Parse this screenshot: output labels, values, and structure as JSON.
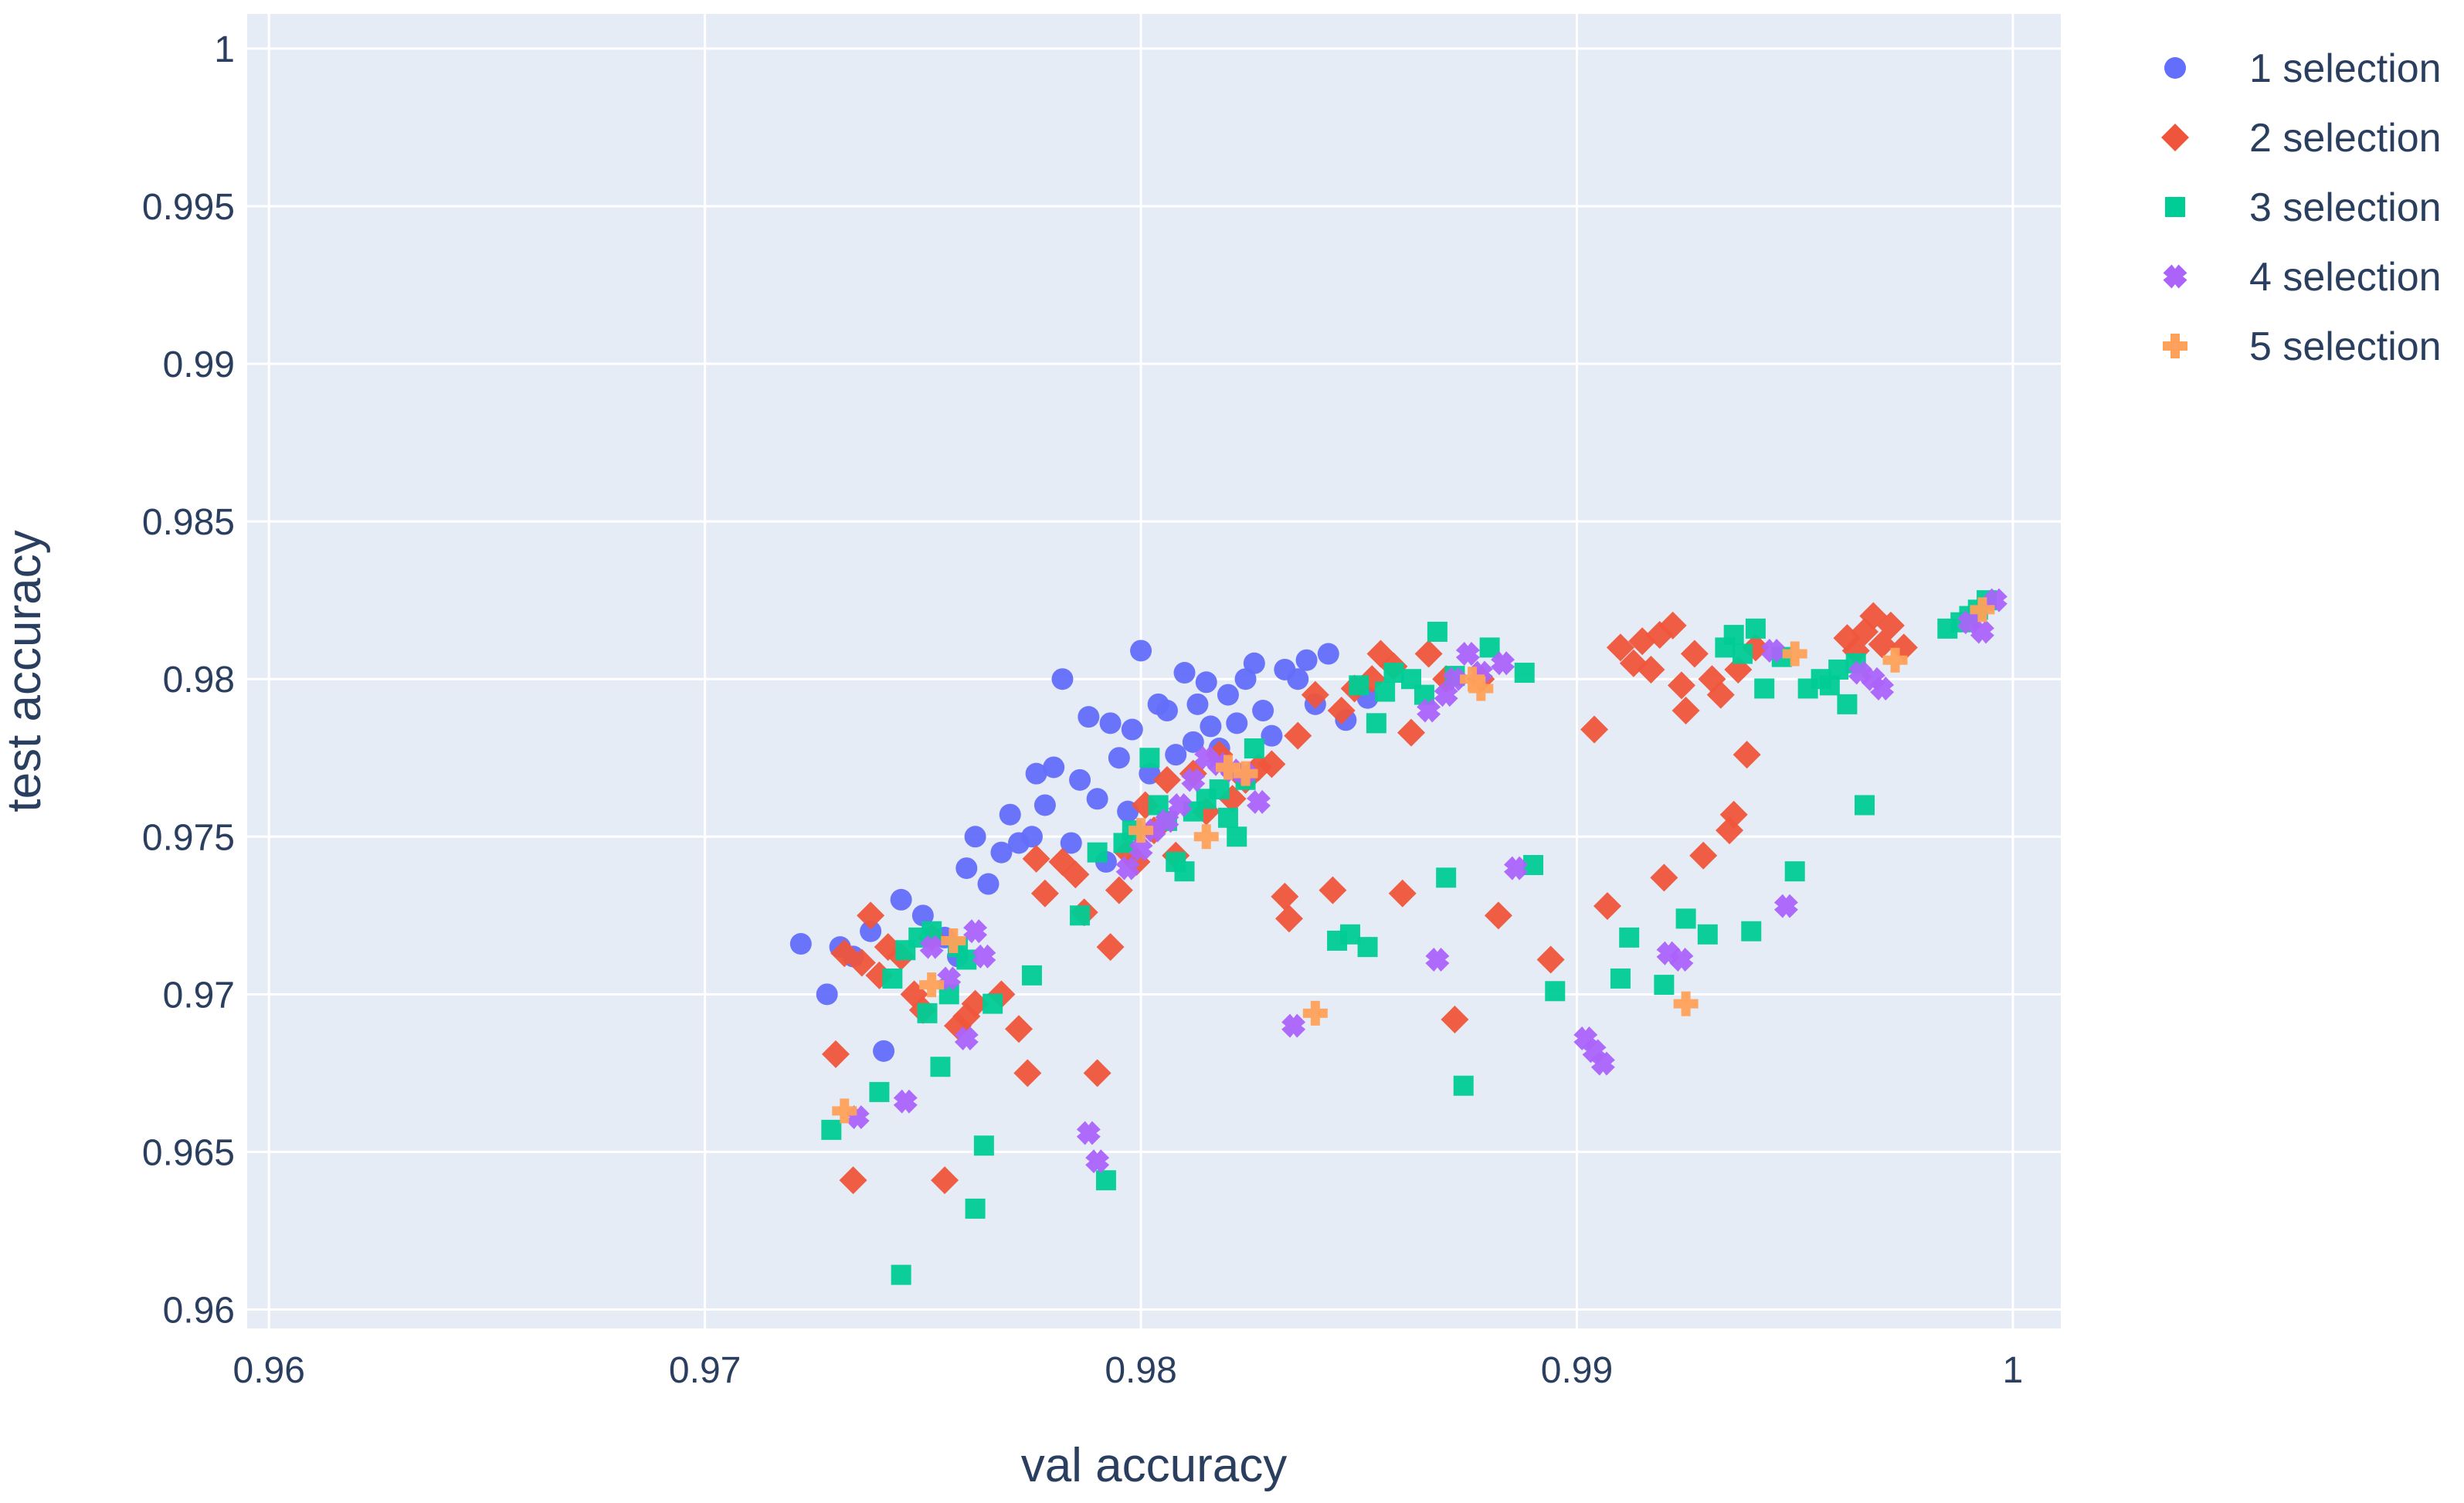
{
  "chart_data": {
    "type": "scatter",
    "title": "",
    "xlabel": "val accuracy",
    "ylabel": "test accuracy",
    "xlim": [
      0.9595,
      1.0011
    ],
    "ylim": [
      0.9594,
      1.0011
    ],
    "x_ticks": [
      0.96,
      0.97,
      0.98,
      0.99,
      1.0
    ],
    "x_tick_labels": [
      "0.96",
      "0.97",
      "0.98",
      "0.99",
      "1"
    ],
    "y_ticks": [
      0.96,
      0.965,
      0.97,
      0.975,
      0.98,
      0.985,
      0.99,
      0.995,
      1.0
    ],
    "y_tick_labels": [
      "0.96",
      "0.965",
      "0.97",
      "0.975",
      "0.98",
      "0.985",
      "0.99",
      "0.995",
      "1"
    ],
    "grid": true,
    "legend_position": "top-right",
    "colors": {
      "plot_background": "#e5ecf6",
      "grid": "#ffffff",
      "text": "#2a3f5f"
    },
    "series": [
      {
        "name": "1 selection",
        "marker": "circle",
        "color": "#636efa",
        "points": [
          [
            0.9722,
            0.9716
          ],
          [
            0.9728,
            0.97
          ],
          [
            0.9731,
            0.9715
          ],
          [
            0.9734,
            0.9712
          ],
          [
            0.9738,
            0.972
          ],
          [
            0.9741,
            0.9682
          ],
          [
            0.9745,
            0.973
          ],
          [
            0.975,
            0.9725
          ],
          [
            0.9755,
            0.9718
          ],
          [
            0.9758,
            0.9712
          ],
          [
            0.976,
            0.974
          ],
          [
            0.9762,
            0.975
          ],
          [
            0.9765,
            0.9735
          ],
          [
            0.9768,
            0.9745
          ],
          [
            0.977,
            0.9757
          ],
          [
            0.9772,
            0.9748
          ],
          [
            0.9775,
            0.975
          ],
          [
            0.9776,
            0.977
          ],
          [
            0.9778,
            0.976
          ],
          [
            0.978,
            0.9772
          ],
          [
            0.9782,
            0.98
          ],
          [
            0.9784,
            0.9748
          ],
          [
            0.9786,
            0.9768
          ],
          [
            0.9788,
            0.9788
          ],
          [
            0.979,
            0.9762
          ],
          [
            0.9792,
            0.9742
          ],
          [
            0.9793,
            0.9786
          ],
          [
            0.9795,
            0.9775
          ],
          [
            0.9797,
            0.9758
          ],
          [
            0.9798,
            0.9784
          ],
          [
            0.98,
            0.9809
          ],
          [
            0.9802,
            0.977
          ],
          [
            0.9804,
            0.9792
          ],
          [
            0.9806,
            0.979
          ],
          [
            0.9808,
            0.9776
          ],
          [
            0.981,
            0.9802
          ],
          [
            0.9812,
            0.978
          ],
          [
            0.9813,
            0.9792
          ],
          [
            0.9815,
            0.9799
          ],
          [
            0.9816,
            0.9785
          ],
          [
            0.9818,
            0.9778
          ],
          [
            0.982,
            0.9795
          ],
          [
            0.9822,
            0.9786
          ],
          [
            0.9824,
            0.98
          ],
          [
            0.9826,
            0.9805
          ],
          [
            0.9828,
            0.979
          ],
          [
            0.983,
            0.9782
          ],
          [
            0.9833,
            0.9803
          ],
          [
            0.9836,
            0.98
          ],
          [
            0.9838,
            0.9806
          ],
          [
            0.984,
            0.9792
          ],
          [
            0.9843,
            0.9808
          ],
          [
            0.9847,
            0.9787
          ],
          [
            0.9852,
            0.9794
          ]
        ]
      },
      {
        "name": "2 selection",
        "marker": "diamond",
        "color": "#ef553b",
        "points": [
          [
            0.973,
            0.9681
          ],
          [
            0.9732,
            0.9713
          ],
          [
            0.9734,
            0.9641
          ],
          [
            0.9736,
            0.971
          ],
          [
            0.9738,
            0.9725
          ],
          [
            0.974,
            0.9706
          ],
          [
            0.9742,
            0.9715
          ],
          [
            0.9745,
            0.9712
          ],
          [
            0.9748,
            0.97
          ],
          [
            0.975,
            0.9695
          ],
          [
            0.9752,
            0.9718
          ],
          [
            0.9755,
            0.9641
          ],
          [
            0.9758,
            0.969
          ],
          [
            0.976,
            0.9693
          ],
          [
            0.9762,
            0.9697
          ],
          [
            0.9768,
            0.97
          ],
          [
            0.9772,
            0.9689
          ],
          [
            0.9774,
            0.9675
          ],
          [
            0.9776,
            0.9743
          ],
          [
            0.9778,
            0.9732
          ],
          [
            0.9782,
            0.9742
          ],
          [
            0.9785,
            0.9738
          ],
          [
            0.9787,
            0.9726
          ],
          [
            0.979,
            0.9675
          ],
          [
            0.9793,
            0.9715
          ],
          [
            0.9795,
            0.9733
          ],
          [
            0.9797,
            0.9745
          ],
          [
            0.9799,
            0.9742
          ],
          [
            0.9801,
            0.976
          ],
          [
            0.9803,
            0.9752
          ],
          [
            0.9806,
            0.9768
          ],
          [
            0.9808,
            0.9744
          ],
          [
            0.9812,
            0.977
          ],
          [
            0.9815,
            0.9758
          ],
          [
            0.9818,
            0.9776
          ],
          [
            0.9821,
            0.9762
          ],
          [
            0.9824,
            0.9768
          ],
          [
            0.9827,
            0.9772
          ],
          [
            0.983,
            0.9773
          ],
          [
            0.9833,
            0.9731
          ],
          [
            0.9834,
            0.9724
          ],
          [
            0.9836,
            0.9782
          ],
          [
            0.984,
            0.9795
          ],
          [
            0.9844,
            0.9733
          ],
          [
            0.9846,
            0.979
          ],
          [
            0.9849,
            0.9797
          ],
          [
            0.9853,
            0.98
          ],
          [
            0.9855,
            0.9808
          ],
          [
            0.9858,
            0.9804
          ],
          [
            0.986,
            0.9732
          ],
          [
            0.9862,
            0.9783
          ],
          [
            0.9866,
            0.9808
          ],
          [
            0.987,
            0.98
          ],
          [
            0.9872,
            0.9692
          ],
          [
            0.9878,
            0.98
          ],
          [
            0.9882,
            0.9725
          ],
          [
            0.9894,
            0.9711
          ],
          [
            0.9904,
            0.9784
          ],
          [
            0.9907,
            0.9728
          ],
          [
            0.991,
            0.981
          ],
          [
            0.9913,
            0.9805
          ],
          [
            0.9915,
            0.9812
          ],
          [
            0.9917,
            0.9803
          ],
          [
            0.9919,
            0.9814
          ],
          [
            0.992,
            0.9737
          ],
          [
            0.9922,
            0.9817
          ],
          [
            0.9924,
            0.9798
          ],
          [
            0.9925,
            0.979
          ],
          [
            0.9927,
            0.9808
          ],
          [
            0.9929,
            0.9744
          ],
          [
            0.9931,
            0.98
          ],
          [
            0.9933,
            0.9795
          ],
          [
            0.9935,
            0.9752
          ],
          [
            0.9936,
            0.9757
          ],
          [
            0.9937,
            0.9803
          ],
          [
            0.9939,
            0.9776
          ],
          [
            0.9941,
            0.981
          ],
          [
            0.9962,
            0.9813
          ],
          [
            0.9964,
            0.9809
          ],
          [
            0.9966,
            0.9815
          ],
          [
            0.9968,
            0.982
          ],
          [
            0.997,
            0.9811
          ],
          [
            0.9972,
            0.9817
          ],
          [
            0.9975,
            0.981
          ]
        ]
      },
      {
        "name": "3 selection",
        "marker": "square",
        "color": "#00cc96",
        "points": [
          [
            0.9729,
            0.9657
          ],
          [
            0.974,
            0.9669
          ],
          [
            0.9743,
            0.9705
          ],
          [
            0.9745,
            0.9611
          ],
          [
            0.9746,
            0.9714
          ],
          [
            0.9749,
            0.9718
          ],
          [
            0.9751,
            0.9694
          ],
          [
            0.9752,
            0.972
          ],
          [
            0.9754,
            0.9677
          ],
          [
            0.9756,
            0.97
          ],
          [
            0.9758,
            0.9715
          ],
          [
            0.976,
            0.9711
          ],
          [
            0.9762,
            0.9632
          ],
          [
            0.9764,
            0.9652
          ],
          [
            0.9766,
            0.9697
          ],
          [
            0.9775,
            0.9706
          ],
          [
            0.9786,
            0.9725
          ],
          [
            0.979,
            0.9745
          ],
          [
            0.9792,
            0.9641
          ],
          [
            0.9796,
            0.9748
          ],
          [
            0.9798,
            0.9752
          ],
          [
            0.9802,
            0.9775
          ],
          [
            0.9804,
            0.976
          ],
          [
            0.9806,
            0.9755
          ],
          [
            0.9808,
            0.9742
          ],
          [
            0.981,
            0.9739
          ],
          [
            0.9812,
            0.9758
          ],
          [
            0.9815,
            0.9762
          ],
          [
            0.9818,
            0.9765
          ],
          [
            0.982,
            0.9756
          ],
          [
            0.9822,
            0.975
          ],
          [
            0.9824,
            0.9768
          ],
          [
            0.9826,
            0.9778
          ],
          [
            0.9845,
            0.9717
          ],
          [
            0.9848,
            0.9719
          ],
          [
            0.985,
            0.9798
          ],
          [
            0.9852,
            0.9715
          ],
          [
            0.9854,
            0.9786
          ],
          [
            0.9856,
            0.9796
          ],
          [
            0.9858,
            0.9802
          ],
          [
            0.9862,
            0.98
          ],
          [
            0.9865,
            0.9795
          ],
          [
            0.9868,
            0.9815
          ],
          [
            0.987,
            0.9737
          ],
          [
            0.9872,
            0.9801
          ],
          [
            0.9874,
            0.9671
          ],
          [
            0.988,
            0.981
          ],
          [
            0.9888,
            0.9802
          ],
          [
            0.989,
            0.9741
          ],
          [
            0.9895,
            0.9701
          ],
          [
            0.991,
            0.9705
          ],
          [
            0.9912,
            0.9718
          ],
          [
            0.992,
            0.9703
          ],
          [
            0.9925,
            0.9724
          ],
          [
            0.993,
            0.9719
          ],
          [
            0.9934,
            0.981
          ],
          [
            0.9936,
            0.9814
          ],
          [
            0.9938,
            0.9808
          ],
          [
            0.994,
            0.972
          ],
          [
            0.9941,
            0.9816
          ],
          [
            0.9943,
            0.9797
          ],
          [
            0.9947,
            0.9807
          ],
          [
            0.995,
            0.9739
          ],
          [
            0.9953,
            0.9797
          ],
          [
            0.9956,
            0.98
          ],
          [
            0.9958,
            0.9798
          ],
          [
            0.996,
            0.9803
          ],
          [
            0.9962,
            0.9792
          ],
          [
            0.9964,
            0.9805
          ],
          [
            0.9966,
            0.976
          ],
          [
            0.9985,
            0.9816
          ],
          [
            0.9988,
            0.9818
          ],
          [
            0.999,
            0.982
          ],
          [
            0.9992,
            0.9822
          ],
          [
            0.9994,
            0.9825
          ]
        ]
      },
      {
        "name": "4 selection",
        "marker": "x",
        "color": "#ab63fa",
        "points": [
          [
            0.9735,
            0.9661
          ],
          [
            0.9746,
            0.9666
          ],
          [
            0.9752,
            0.9715
          ],
          [
            0.9756,
            0.9705
          ],
          [
            0.976,
            0.9686
          ],
          [
            0.9762,
            0.972
          ],
          [
            0.9764,
            0.9712
          ],
          [
            0.9788,
            0.9656
          ],
          [
            0.979,
            0.9647
          ],
          [
            0.9797,
            0.974
          ],
          [
            0.98,
            0.9746
          ],
          [
            0.9803,
            0.9752
          ],
          [
            0.9806,
            0.9755
          ],
          [
            0.9809,
            0.976
          ],
          [
            0.9812,
            0.9768
          ],
          [
            0.9815,
            0.9775
          ],
          [
            0.9818,
            0.9773
          ],
          [
            0.9821,
            0.9771
          ],
          [
            0.9824,
            0.977
          ],
          [
            0.9827,
            0.9761
          ],
          [
            0.9835,
            0.969
          ],
          [
            0.9866,
            0.979
          ],
          [
            0.9868,
            0.9711
          ],
          [
            0.987,
            0.9795
          ],
          [
            0.9872,
            0.98
          ],
          [
            0.9875,
            0.9808
          ],
          [
            0.9878,
            0.9802
          ],
          [
            0.9883,
            0.9805
          ],
          [
            0.9886,
            0.974
          ],
          [
            0.9902,
            0.9686
          ],
          [
            0.9904,
            0.9682
          ],
          [
            0.9906,
            0.9678
          ],
          [
            0.9921,
            0.9713
          ],
          [
            0.9924,
            0.9711
          ],
          [
            0.9945,
            0.9809
          ],
          [
            0.9948,
            0.9728
          ],
          [
            0.9965,
            0.9802
          ],
          [
            0.9968,
            0.98
          ],
          [
            0.997,
            0.9797
          ],
          [
            0.999,
            0.9818
          ],
          [
            0.9993,
            0.9815
          ],
          [
            0.9996,
            0.9825
          ]
        ]
      },
      {
        "name": "5 selection",
        "marker": "cross",
        "color": "#ffa15a",
        "points": [
          [
            0.9732,
            0.9663
          ],
          [
            0.9752,
            0.9703
          ],
          [
            0.9757,
            0.9717
          ],
          [
            0.98,
            0.9752
          ],
          [
            0.9815,
            0.975
          ],
          [
            0.982,
            0.9772
          ],
          [
            0.9824,
            0.977
          ],
          [
            0.984,
            0.9694
          ],
          [
            0.9876,
            0.98
          ],
          [
            0.9878,
            0.9797
          ],
          [
            0.9925,
            0.9697
          ],
          [
            0.995,
            0.9808
          ],
          [
            0.9973,
            0.9806
          ],
          [
            0.9993,
            0.9822
          ]
        ]
      }
    ]
  }
}
